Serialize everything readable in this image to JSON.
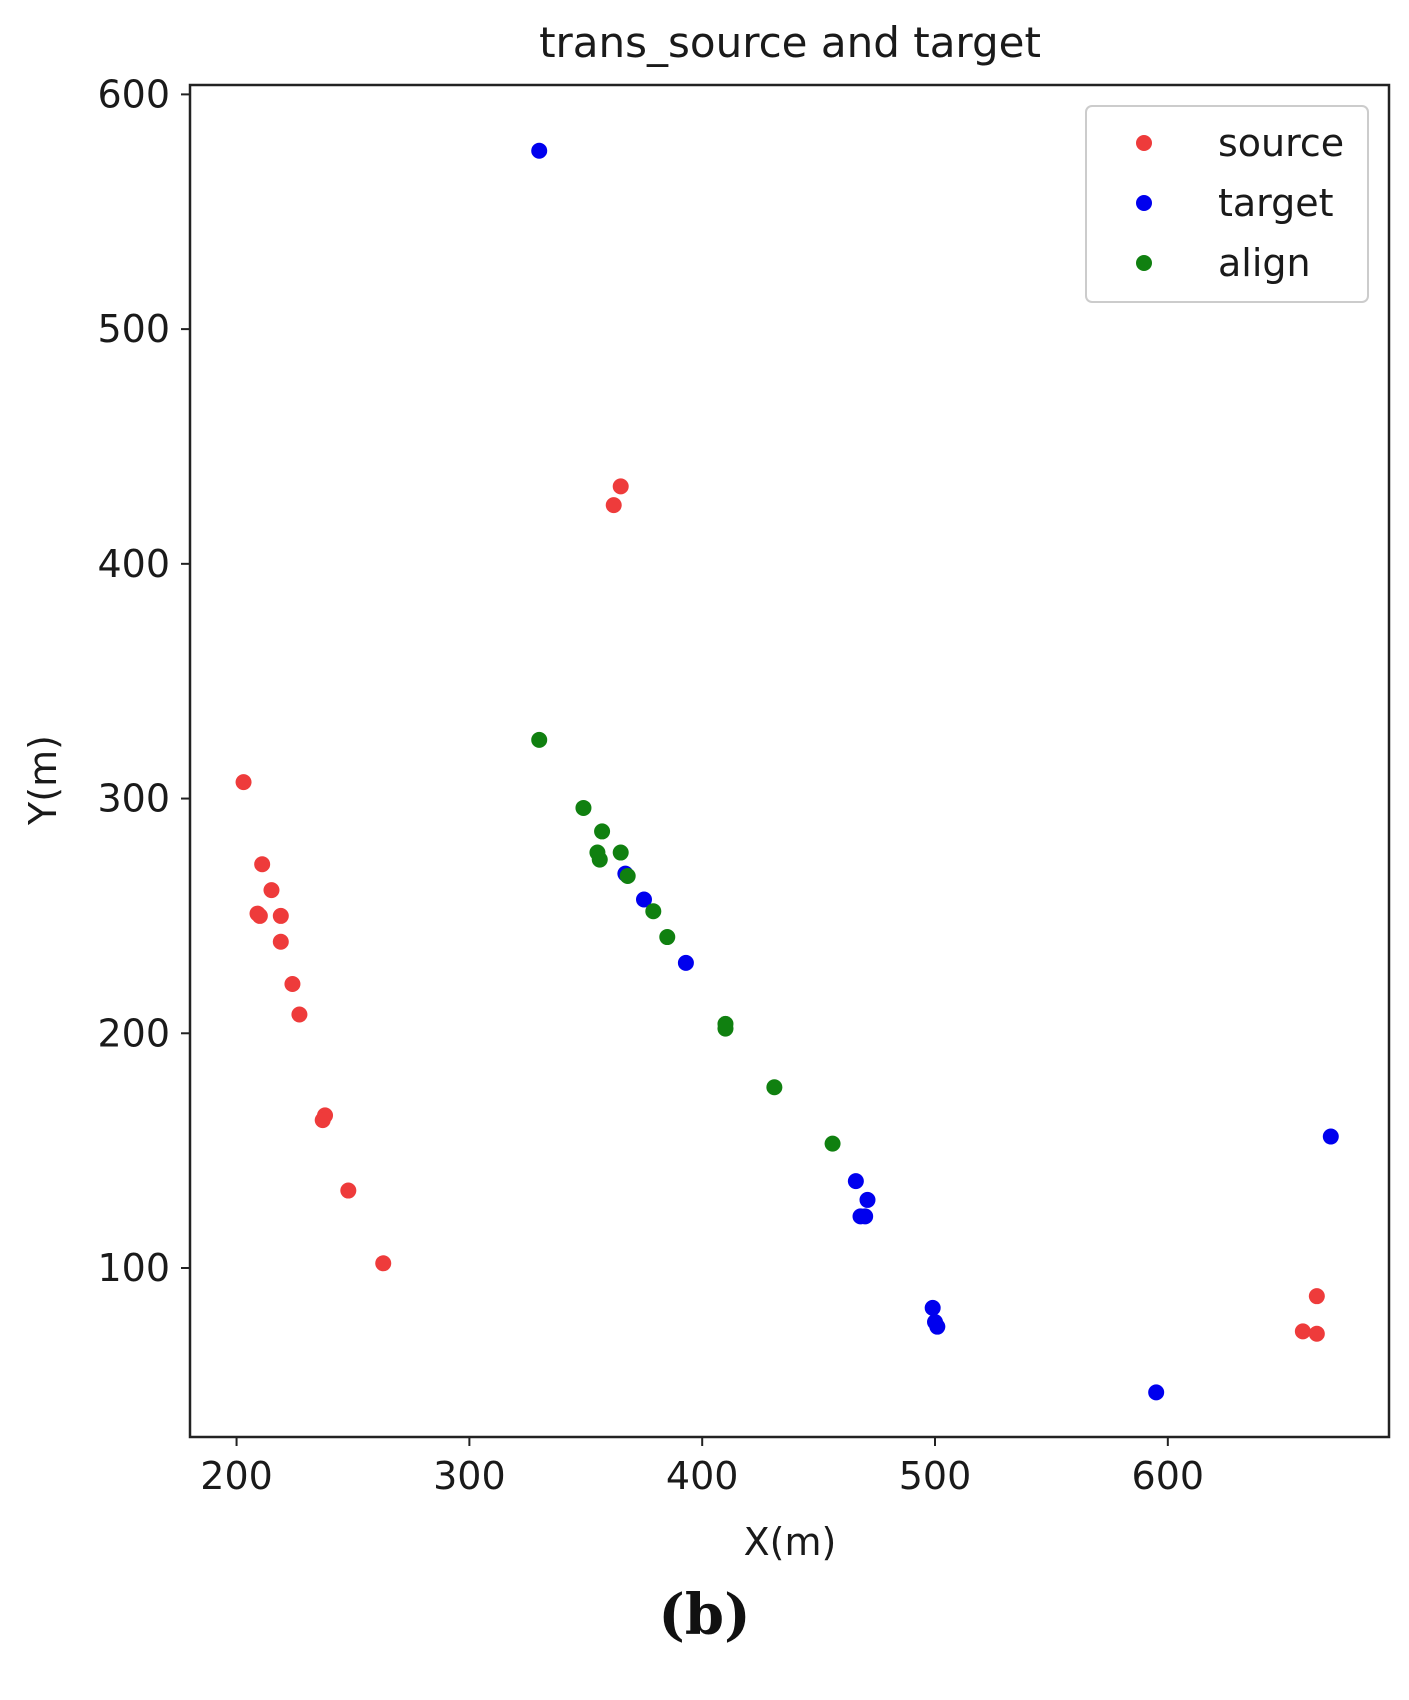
{
  "panel_label": "(b)",
  "chart_data": {
    "type": "scatter",
    "title": "trans_source and target",
    "xlabel": "X(m)",
    "ylabel": "Y(m)",
    "xlim": [
      180,
      695
    ],
    "ylim": [
      28,
      604
    ],
    "xticks": [
      200,
      300,
      400,
      500,
      600
    ],
    "yticks": [
      100,
      200,
      300,
      400,
      500,
      600
    ],
    "legend_position": "top-right",
    "series": [
      {
        "name": "source",
        "color": "#ee3b3b",
        "points": [
          [
            203,
            307
          ],
          [
            211,
            272
          ],
          [
            215,
            261
          ],
          [
            219,
            250
          ],
          [
            209,
            251
          ],
          [
            210,
            250
          ],
          [
            219,
            239
          ],
          [
            224,
            221
          ],
          [
            227,
            208
          ],
          [
            238,
            165
          ],
          [
            237,
            163
          ],
          [
            248,
            133
          ],
          [
            263,
            102
          ],
          [
            362,
            425
          ],
          [
            365,
            433
          ],
          [
            664,
            88
          ],
          [
            658,
            73
          ],
          [
            664,
            72
          ]
        ]
      },
      {
        "name": "target",
        "color": "#0000ee",
        "points": [
          [
            330,
            576
          ],
          [
            367,
            268
          ],
          [
            375,
            257
          ],
          [
            393,
            230
          ],
          [
            466,
            137
          ],
          [
            471,
            129
          ],
          [
            468,
            122
          ],
          [
            470,
            122
          ],
          [
            499,
            83
          ],
          [
            500,
            77
          ],
          [
            501,
            75
          ],
          [
            595,
            47
          ],
          [
            670,
            156
          ]
        ]
      },
      {
        "name": "align",
        "color": "#108010",
        "points": [
          [
            330,
            325
          ],
          [
            349,
            296
          ],
          [
            357,
            286
          ],
          [
            365,
            277
          ],
          [
            355,
            277
          ],
          [
            356,
            274
          ],
          [
            368,
            267
          ],
          [
            379,
            252
          ],
          [
            385,
            241
          ],
          [
            410,
            204
          ],
          [
            410,
            202
          ],
          [
            431,
            177
          ],
          [
            456,
            153
          ]
        ]
      }
    ]
  }
}
